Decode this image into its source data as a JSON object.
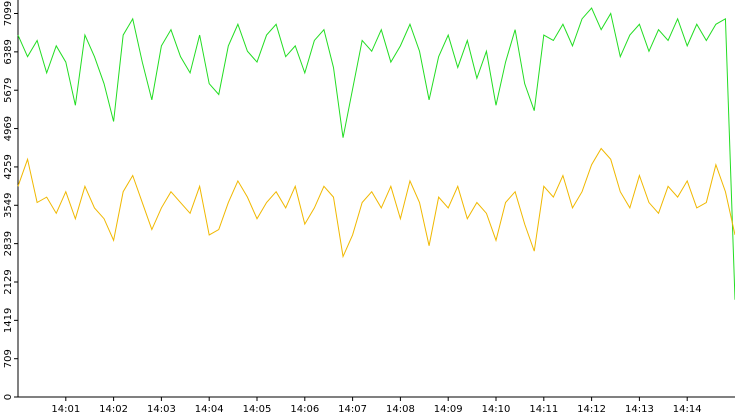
{
  "chart_data": {
    "type": "line",
    "x": [
      840,
      840.2,
      840.4,
      840.6,
      840.8,
      841,
      841.2,
      841.4,
      841.6,
      841.8,
      842,
      842.2,
      842.4,
      842.6,
      842.8,
      843,
      843.2,
      843.4,
      843.6,
      843.8,
      844,
      844.2,
      844.4,
      844.6,
      844.8,
      845,
      845.2,
      845.4,
      845.6,
      845.8,
      846,
      846.2,
      846.4,
      846.6,
      846.8,
      847,
      847.2,
      847.4,
      847.6,
      847.8,
      848,
      848.2,
      848.4,
      848.6,
      848.8,
      849,
      849.2,
      849.4,
      849.6,
      849.8,
      850,
      850.2,
      850.4,
      850.6,
      850.8,
      851,
      851.2,
      851.4,
      851.6,
      851.8,
      852,
      852.2,
      852.4,
      852.6,
      852.8,
      853,
      853.2,
      853.4,
      853.6,
      853.8,
      854,
      854.2,
      854.4,
      854.6,
      854.8,
      855
    ],
    "series": [
      {
        "color": "#22dd22",
        "values": [
          6700,
          6300,
          6600,
          6000,
          6500,
          6200,
          5400,
          6700,
          6300,
          5800,
          5100,
          6700,
          7000,
          6200,
          5500,
          6500,
          6800,
          6300,
          6000,
          6700,
          5800,
          5600,
          6500,
          6900,
          6400,
          6200,
          6700,
          6900,
          6300,
          6500,
          6000,
          6600,
          6800,
          6100,
          4800,
          5700,
          6600,
          6400,
          6800,
          6200,
          6500,
          6900,
          6400,
          5500,
          6300,
          6700,
          6100,
          6600,
          5900,
          6400,
          5400,
          6200,
          6800,
          5800,
          5300,
          6700,
          6600,
          6900,
          6500,
          7000,
          7200,
          6800,
          7100,
          6300,
          6700,
          6900,
          6400,
          6800,
          6600,
          7000,
          6500,
          6900,
          6600,
          6900,
          7000,
          1800
        ]
      },
      {
        "color": "#f0b800",
        "values": [
          3900,
          4400,
          3600,
          3700,
          3400,
          3800,
          3300,
          3900,
          3500,
          3300,
          2900,
          3800,
          4100,
          3600,
          3100,
          3500,
          3800,
          3600,
          3400,
          3900,
          3000,
          3100,
          3600,
          4000,
          3700,
          3300,
          3600,
          3800,
          3500,
          3900,
          3200,
          3500,
          3900,
          3700,
          2600,
          3000,
          3600,
          3800,
          3500,
          3900,
          3300,
          4000,
          3600,
          2800,
          3700,
          3500,
          3900,
          3300,
          3600,
          3400,
          2900,
          3600,
          3800,
          3200,
          2700,
          3900,
          3700,
          4100,
          3500,
          3800,
          4300,
          4600,
          4400,
          3800,
          3500,
          4100,
          3600,
          3400,
          3900,
          3700,
          4000,
          3500,
          3600,
          4300,
          3800,
          3000
        ]
      }
    ],
    "xlim": [
      840,
      855
    ],
    "xticks": [
      {
        "value": 841,
        "label": "14:01"
      },
      {
        "value": 842,
        "label": "14:02"
      },
      {
        "value": 843,
        "label": "14:03"
      },
      {
        "value": 844,
        "label": "14:04"
      },
      {
        "value": 845,
        "label": "14:05"
      },
      {
        "value": 846,
        "label": "14:06"
      },
      {
        "value": 847,
        "label": "14:07"
      },
      {
        "value": 848,
        "label": "14:08"
      },
      {
        "value": 849,
        "label": "14:09"
      },
      {
        "value": 850,
        "label": "14:10"
      },
      {
        "value": 851,
        "label": "14:11"
      },
      {
        "value": 852,
        "label": "14:12"
      },
      {
        "value": 853,
        "label": "14:13"
      },
      {
        "value": 854,
        "label": "14:14"
      }
    ],
    "ylim": [
      0,
      7349
    ],
    "yticks": [
      0,
      709,
      1419,
      2129,
      2839,
      3549,
      4259,
      4969,
      5679,
      6389,
      7099
    ]
  }
}
